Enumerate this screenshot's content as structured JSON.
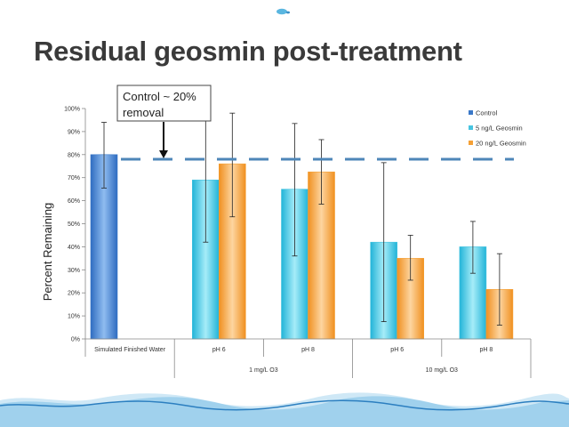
{
  "slide": {
    "title": "Residual geosmin post-treatment"
  },
  "annotation": {
    "line1": "Control ~ 20%",
    "line2": "removal"
  },
  "colors": {
    "control": "#3a78c8",
    "series5": "#47c4e0",
    "series20": "#f5a035",
    "reference_line": "#4e86b8"
  },
  "chart_data": {
    "type": "bar",
    "ylabel": "Percent Remaining",
    "ylim": [
      0,
      100
    ],
    "yticks": [
      "0%",
      "10%",
      "20%",
      "30%",
      "40%",
      "50%",
      "60%",
      "70%",
      "80%",
      "90%",
      "100%"
    ],
    "categories": [
      "Simulated Finished Water",
      "pH 6",
      "pH 8",
      "pH 6",
      "pH 8"
    ],
    "groups": [
      {
        "label": "1 mg/L O3",
        "categories": [
          1,
          2
        ]
      },
      {
        "label": "10 mg/L O3",
        "categories": [
          3,
          4
        ]
      }
    ],
    "series": [
      {
        "name": "Control",
        "values": [
          80,
          null,
          null,
          null,
          null
        ],
        "err_low": [
          65.5,
          null,
          null,
          null,
          null
        ],
        "err_high": [
          94,
          null,
          null,
          null,
          null
        ]
      },
      {
        "name": "5 ng/L Geosmin",
        "values": [
          null,
          69,
          65,
          42,
          40
        ],
        "err_low": [
          null,
          42,
          36,
          7.5,
          28.5
        ],
        "err_high": [
          null,
          95.5,
          93.5,
          76.5,
          51
        ]
      },
      {
        "name": "20 ng/L Geosmin",
        "values": [
          null,
          76,
          72.5,
          35,
          21.5
        ],
        "err_low": [
          null,
          53,
          58.5,
          25.5,
          6
        ],
        "err_high": [
          null,
          98,
          86.5,
          45,
          37
        ]
      }
    ],
    "reference_line": {
      "value": 78
    },
    "legend": "right"
  }
}
